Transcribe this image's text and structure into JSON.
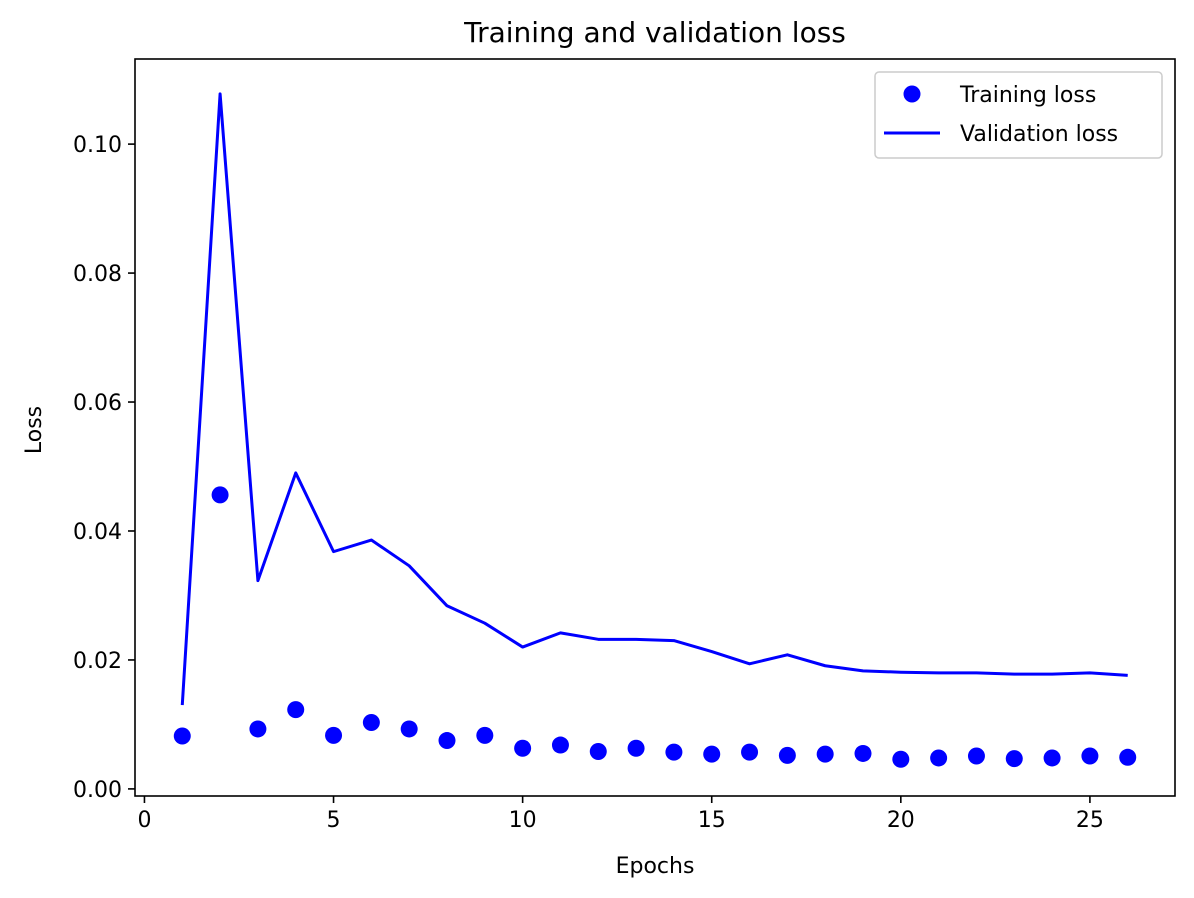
{
  "chart_data": {
    "type": "line",
    "title": "Training and validation loss",
    "xlabel": "Epochs",
    "ylabel": "Loss",
    "xlim": [
      -0.25,
      27.25
    ],
    "ylim": [
      -0.0011,
      0.1132
    ],
    "xticks": [
      0,
      5,
      10,
      15,
      20,
      25
    ],
    "xtick_labels": [
      "0",
      "5",
      "10",
      "15",
      "20",
      "25"
    ],
    "yticks": [
      0.0,
      0.02,
      0.04,
      0.06,
      0.08,
      0.1
    ],
    "ytick_labels": [
      "0.00",
      "0.02",
      "0.04",
      "0.06",
      "0.08",
      "0.10"
    ],
    "grid": false,
    "legend_position": "upper right",
    "x": [
      1,
      2,
      3,
      4,
      5,
      6,
      7,
      8,
      9,
      10,
      11,
      12,
      13,
      14,
      15,
      16,
      17,
      18,
      19,
      20,
      21,
      22,
      23,
      24,
      25,
      26
    ],
    "series": [
      {
        "name": "Training loss",
        "style": "markers",
        "color": "#0000ff",
        "values": [
          0.0082,
          0.0456,
          0.0093,
          0.0123,
          0.0083,
          0.0103,
          0.0093,
          0.0075,
          0.0083,
          0.0063,
          0.0068,
          0.0058,
          0.0063,
          0.0057,
          0.0054,
          0.0057,
          0.0052,
          0.0054,
          0.0055,
          0.0046,
          0.0048,
          0.0051,
          0.0047,
          0.0048,
          0.0051,
          0.0049
        ]
      },
      {
        "name": "Validation loss",
        "style": "line",
        "color": "#0000ff",
        "values": [
          0.013,
          0.1078,
          0.0323,
          0.049,
          0.0368,
          0.0386,
          0.0346,
          0.0284,
          0.0257,
          0.022,
          0.0242,
          0.0232,
          0.0232,
          0.023,
          0.0213,
          0.0194,
          0.0208,
          0.0191,
          0.0183,
          0.0181,
          0.018,
          0.018,
          0.0178,
          0.0178,
          0.018,
          0.0176
        ]
      }
    ]
  }
}
